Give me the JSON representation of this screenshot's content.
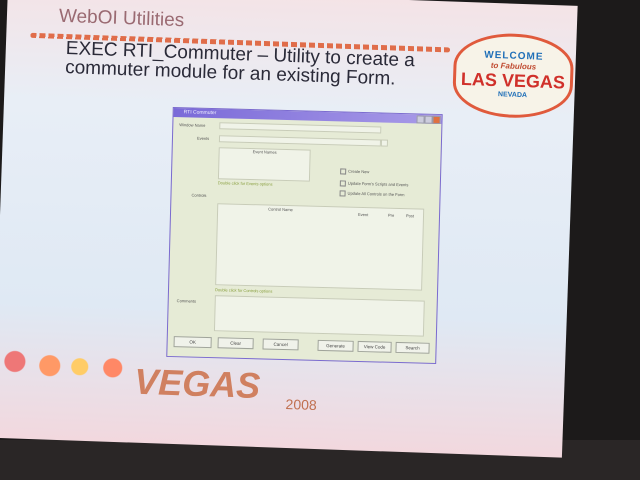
{
  "slide": {
    "title": "WebOI Utilities",
    "heading": "EXEC RTI_Commuter – Utility to create a commuter module for an existing Form.",
    "logo": {
      "welcome": "WELCOME",
      "fabulous": "to Fabulous",
      "las_vegas": "LAS VEGAS",
      "nevada": "NEVADA"
    },
    "footer": {
      "vegas": "VEGAS",
      "year": "2008"
    }
  },
  "dialog": {
    "title": "RTI Commuter",
    "window_name_label": "Window Name",
    "events_label": "Events",
    "event_names_header": "Event Names",
    "events_hint": "Double click for Events options",
    "checkboxes": [
      "Create New",
      "Update Form's Scripts and Events",
      "Update All Controls on the Form"
    ],
    "controls_label": "Controls",
    "controls_columns": [
      "Control Name",
      "Event",
      "Pre",
      "Post"
    ],
    "controls_hint": "Double click for Controls options",
    "comments_label": "Comments",
    "buttons": [
      "OK",
      "Clear",
      "Cancel",
      "Generate",
      "View Code",
      "Search"
    ]
  }
}
